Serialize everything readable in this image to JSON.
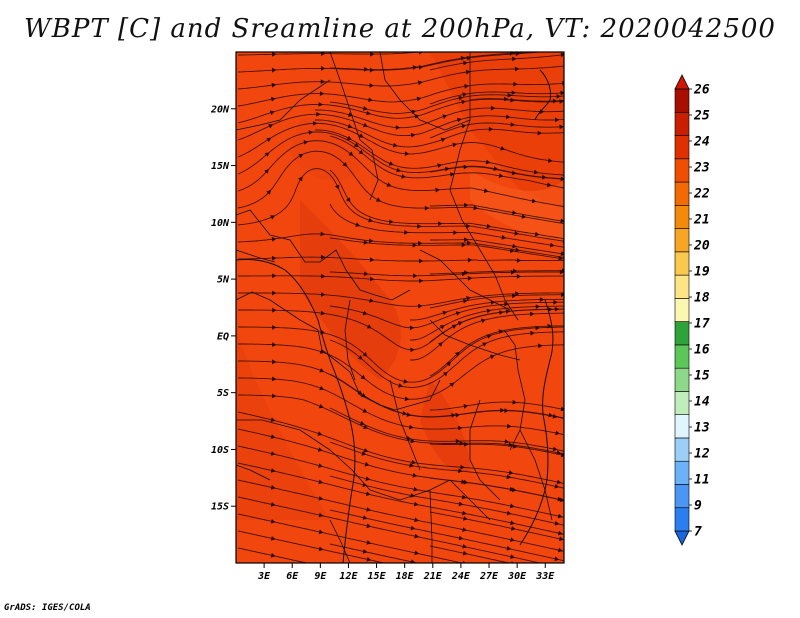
{
  "title": "WBPT [C] and Sreamline at 200hPa, VT: 2020042500",
  "credit": "GrADS: IGES/COLA",
  "map": {
    "lat_ticks": [
      {
        "label": "20N",
        "lat": 20
      },
      {
        "label": "15N",
        "lat": 15
      },
      {
        "label": "10N",
        "lat": 10
      },
      {
        "label": "5N",
        "lat": 5
      },
      {
        "label": "EQ",
        "lat": 0
      },
      {
        "label": "5S",
        "lat": -5
      },
      {
        "label": "10S",
        "lat": -10
      },
      {
        "label": "15S",
        "lat": -15
      }
    ],
    "lon_ticks": [
      {
        "label": "3E",
        "lon": 3
      },
      {
        "label": "6E",
        "lon": 6
      },
      {
        "label": "9E",
        "lon": 9
      },
      {
        "label": "12E",
        "lon": 12
      },
      {
        "label": "15E",
        "lon": 15
      },
      {
        "label": "18E",
        "lon": 18
      },
      {
        "label": "21E",
        "lon": 21
      },
      {
        "label": "24E",
        "lon": 24
      },
      {
        "label": "27E",
        "lon": 27
      },
      {
        "label": "30E",
        "lon": 30
      },
      {
        "label": "33E",
        "lon": 33
      }
    ],
    "extent": {
      "lon_min": 0,
      "lon_max": 35,
      "lat_min": -20,
      "lat_max": 25
    }
  },
  "colorbar": {
    "colors": [
      "#1a66dd",
      "#2a7ef0",
      "#4a96f5",
      "#6cb2f8",
      "#9ccff8",
      "#dff6ff",
      "#bfeebc",
      "#8ed989",
      "#5cc759",
      "#2ea33a",
      "#fbf6b0",
      "#fde585",
      "#fac84c",
      "#f6a622",
      "#f38a0a",
      "#f26a00",
      "#ef4d00",
      "#e03000",
      "#c91e00",
      "#a80f00",
      "#d21404"
    ],
    "labels": [
      "7",
      "9",
      "11",
      "12",
      "13",
      "14",
      "15",
      "16",
      "17",
      "18",
      "19",
      "20",
      "21",
      "22",
      "23",
      "24",
      "25",
      "26"
    ]
  }
}
